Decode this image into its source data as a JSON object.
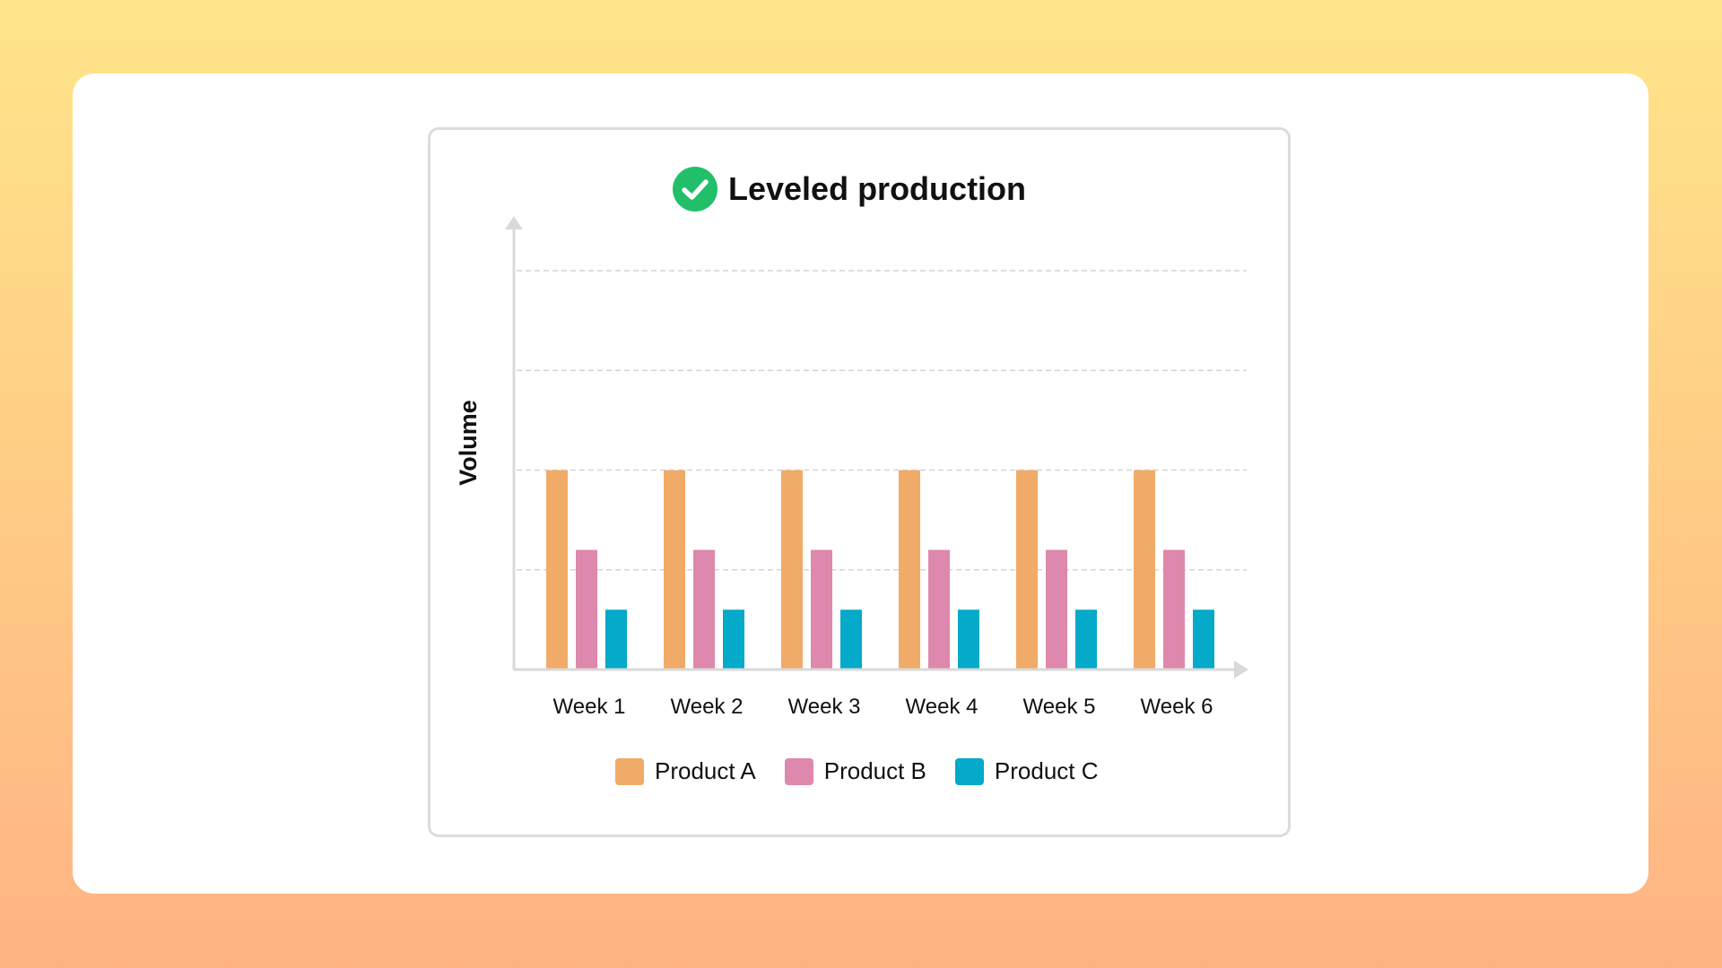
{
  "chart_data": {
    "type": "bar",
    "title": "Leveled production",
    "ylabel": "Volume",
    "xlabel": "",
    "categories": [
      "Week 1",
      "Week 2",
      "Week 3",
      "Week 4",
      "Week 5",
      "Week 6"
    ],
    "series": [
      {
        "name": "Product A",
        "color": "#f0ab68",
        "values": [
          2,
          2,
          2,
          2,
          2,
          2
        ]
      },
      {
        "name": "Product B",
        "color": "#de88ad",
        "values": [
          1.2,
          1.2,
          1.2,
          1.2,
          1.2,
          1.2
        ]
      },
      {
        "name": "Product C",
        "color": "#05a9c9",
        "values": [
          0.6,
          0.6,
          0.6,
          0.6,
          0.6,
          0.6
        ]
      }
    ],
    "ylim": [
      0,
      4
    ],
    "grid": true,
    "legend_position": "bottom",
    "icon": "check-circle-icon",
    "icon_color": "#22bf6b"
  }
}
